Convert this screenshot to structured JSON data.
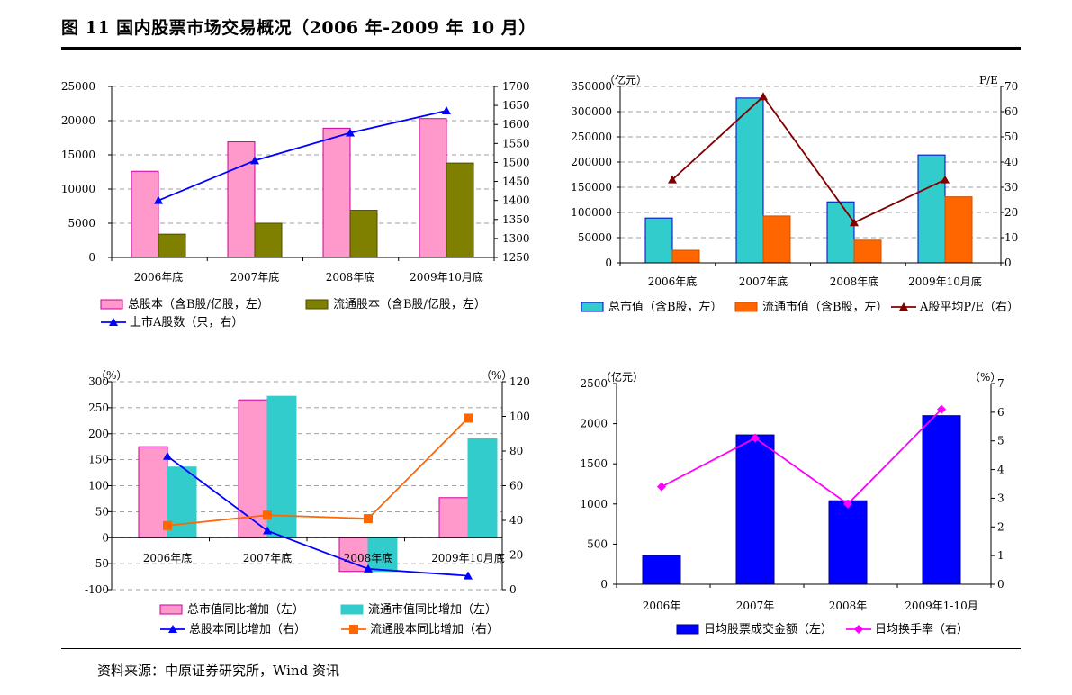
{
  "title": "图 11  国内股票市场交易概况（2006 年-2009 年 10 月）",
  "source": "资料来源：中原证券研究所，Wind 资讯",
  "chart_data": [
    {
      "type": "bar",
      "categories": [
        "2006年底",
        "2007年底",
        "2008年底",
        "2009年10月底"
      ],
      "y_left": {
        "min": 0,
        "max": 25000,
        "ticks": [
          0,
          5000,
          10000,
          15000,
          20000,
          25000
        ]
      },
      "y_right": {
        "min": 1250,
        "max": 1700,
        "ticks": [
          1250,
          1300,
          1350,
          1400,
          1450,
          1500,
          1550,
          1600,
          1650,
          1700
        ]
      },
      "grid": true,
      "legend_position": "bottom",
      "series": [
        {
          "name": "总股本（含B股/亿股，左）",
          "kind": "bar",
          "axis": "left",
          "color": "#ff99cc",
          "stroke": "#cc0099",
          "values": [
            12600,
            16900,
            18900,
            20300
          ]
        },
        {
          "name": "流通股本（含B股/亿股，左）",
          "kind": "bar",
          "axis": "left",
          "color": "#808000",
          "stroke": "#4d4d00",
          "values": [
            3400,
            5000,
            6900,
            13800
          ]
        },
        {
          "name": "上市A股数（只，右）",
          "kind": "line",
          "axis": "right",
          "color": "#0000ff",
          "marker": "triangle",
          "values": [
            1400,
            1505,
            1578,
            1636
          ]
        }
      ]
    },
    {
      "type": "bar",
      "categories": [
        "2006年底",
        "2007年底",
        "2008年底",
        "2009年10月底"
      ],
      "y_left": {
        "min": 0,
        "max": 350000,
        "ticks": [
          0,
          50000,
          100000,
          150000,
          200000,
          250000,
          300000,
          350000
        ],
        "unit": "（亿元）"
      },
      "y_right": {
        "min": 0,
        "max": 70,
        "ticks": [
          0,
          10,
          20,
          30,
          40,
          50,
          60,
          70
        ],
        "unit": "P/E"
      },
      "grid": true,
      "legend_position": "bottom",
      "series": [
        {
          "name": "总市值（含B股，左）",
          "kind": "bar",
          "axis": "left",
          "color": "#33cccc",
          "stroke": "#0000cc",
          "values": [
            89000,
            327000,
            121000,
            214000
          ]
        },
        {
          "name": "流通市值（含B股，左）",
          "kind": "bar",
          "axis": "left",
          "color": "#ff6600",
          "stroke": "#cc5200",
          "values": [
            25000,
            93000,
            45000,
            131000
          ]
        },
        {
          "name": "A股平均P/E（右）",
          "kind": "line",
          "axis": "right",
          "color": "#800000",
          "marker": "triangle",
          "values": [
            33,
            66,
            16,
            33
          ]
        }
      ]
    },
    {
      "type": "bar",
      "categories": [
        "2006年底",
        "2007年底",
        "2008年底",
        "2009年10月底"
      ],
      "y_left": {
        "min": -100,
        "max": 300,
        "ticks": [
          -100,
          -50,
          0,
          50,
          100,
          150,
          200,
          250,
          300
        ],
        "unit": "（%）"
      },
      "y_right": {
        "min": 0,
        "max": 120,
        "ticks": [
          0,
          20,
          40,
          60,
          80,
          100,
          120
        ],
        "unit": "（%）"
      },
      "grid": true,
      "legend_position": "bottom",
      "series": [
        {
          "name": "总市值同比增加（左）",
          "kind": "bar",
          "axis": "left",
          "color": "#ff99cc",
          "stroke": "#cc0099",
          "values": [
            175,
            265,
            -65,
            77
          ]
        },
        {
          "name": "流通市值同比增加（左）",
          "kind": "bar",
          "axis": "left",
          "color": "#33cccc",
          "stroke": "#33cccc",
          "values": [
            136,
            272,
            -65,
            190
          ]
        },
        {
          "name": "总股本同比增加（右）",
          "kind": "line",
          "axis": "right",
          "color": "#0000ff",
          "marker": "triangle",
          "values": [
            77,
            34,
            12,
            8
          ]
        },
        {
          "name": "流通股本同比增加（右）",
          "kind": "line",
          "axis": "right",
          "color": "#ff6600",
          "marker": "square",
          "values": [
            37,
            43,
            41,
            99
          ]
        }
      ]
    },
    {
      "type": "bar",
      "categories": [
        "2006年",
        "2007年",
        "2008年",
        "2009年1-10月"
      ],
      "y_left": {
        "min": 0,
        "max": 2500,
        "ticks": [
          0,
          500,
          1000,
          1500,
          2000,
          2500
        ],
        "unit": "（亿元）"
      },
      "y_right": {
        "min": 0,
        "max": 7,
        "ticks": [
          0,
          1,
          2,
          3,
          4,
          5,
          6,
          7
        ],
        "unit": "（%）"
      },
      "grid": false,
      "legend_position": "bottom",
      "series": [
        {
          "name": "日均股票成交金额（左）",
          "kind": "bar",
          "axis": "left",
          "color": "#0000ff",
          "stroke": "#000080",
          "values": [
            360,
            1860,
            1040,
            2100
          ]
        },
        {
          "name": "日均换手率（右）",
          "kind": "line",
          "axis": "right",
          "color": "#ff00ff",
          "marker": "diamond",
          "values": [
            3.4,
            5.1,
            2.8,
            6.1
          ]
        }
      ]
    }
  ]
}
